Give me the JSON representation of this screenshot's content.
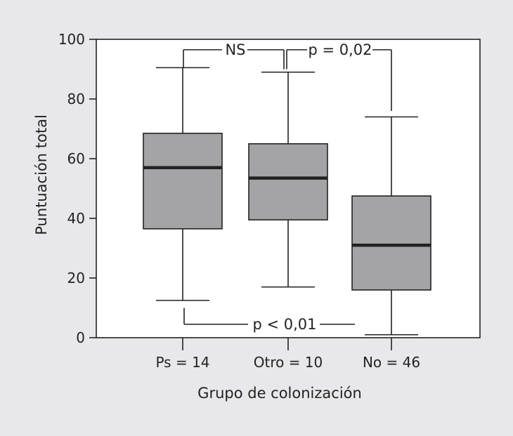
{
  "chart_data": {
    "type": "box",
    "xlabel": "Grupo de colonización",
    "ylabel": "Puntuación total",
    "ylim": [
      0,
      100
    ],
    "yticks": [
      0,
      20,
      40,
      60,
      80,
      100
    ],
    "categories": [
      "Ps = 14",
      "Otro = 10",
      "No = 46"
    ],
    "boxes": [
      {
        "whisker_low": 12.5,
        "q1": 36.5,
        "median": 57,
        "q3": 68.5,
        "whisker_high": 90.5
      },
      {
        "whisker_low": 17,
        "q1": 39.5,
        "median": 53.5,
        "q3": 65,
        "whisker_high": 89
      },
      {
        "whisker_low": 1,
        "q1": 16,
        "median": 31,
        "q3": 47.5,
        "whisker_high": 74
      }
    ],
    "annotations": [
      {
        "label": "NS",
        "from": 0,
        "to": 1,
        "level": 96.5,
        "legs_to": [
          90.5,
          90
        ]
      },
      {
        "label": "p = 0,02",
        "from": 1,
        "to": 2,
        "level": 96.5,
        "legs_to": [
          90,
          76
        ]
      },
      {
        "label": "p < 0,01",
        "from": 0,
        "to": 2,
        "level": 4.5,
        "legs_to": [
          10,
          4.5
        ]
      }
    ],
    "colors": {
      "box_fill": "#a4a4a6",
      "median": "#222222",
      "line": "#222222",
      "plot_bg": "#ffffff",
      "page_bg": "#e8e8ea"
    },
    "grid": false,
    "legend": "none"
  }
}
